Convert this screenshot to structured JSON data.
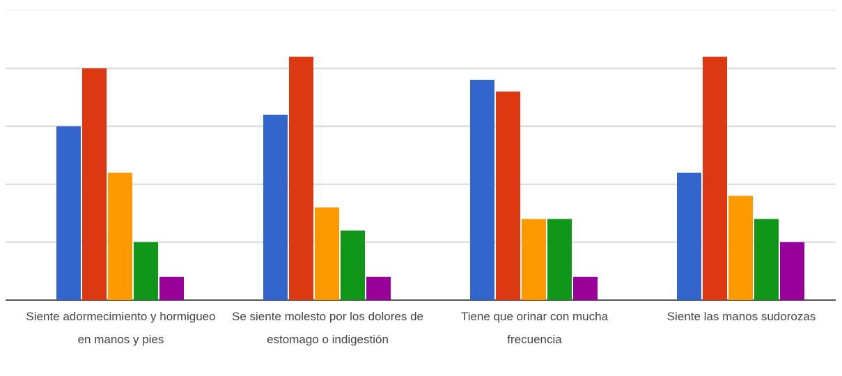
{
  "chart_data": {
    "type": "bar",
    "categories": [
      "Siente adormecimiento y hormigueo en manos y pies",
      "Se siente molesto por los dolores de estomago o indigestión",
      "Tiene que orinar con mucha frecuencia",
      "Siente las manos sudorozas"
    ],
    "series": [
      {
        "color": "#3366cc",
        "values": [
          15,
          16,
          19,
          11
        ]
      },
      {
        "color": "#dc3912",
        "values": [
          20,
          21,
          18,
          21
        ]
      },
      {
        "color": "#ff9900",
        "values": [
          11,
          8,
          7,
          9
        ]
      },
      {
        "color": "#109618",
        "values": [
          5,
          6,
          7,
          7
        ]
      },
      {
        "color": "#990099",
        "values": [
          2,
          2,
          2,
          5
        ]
      }
    ],
    "ylim": [
      0,
      25
    ],
    "yticks": [
      0,
      5,
      10,
      15,
      20,
      25
    ],
    "grid": true
  }
}
